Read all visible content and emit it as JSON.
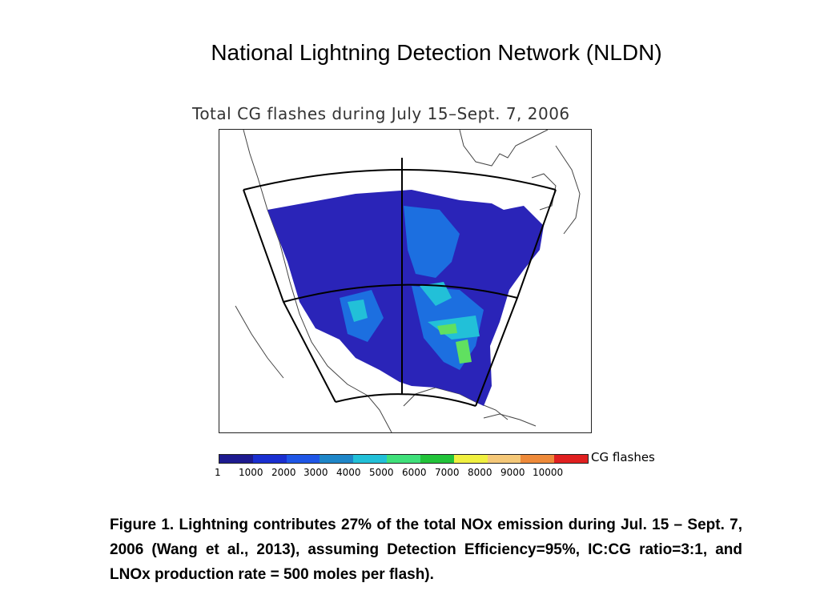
{
  "slide": {
    "title": "National Lightning Detection Network (NLDN)"
  },
  "map": {
    "title": "Total CG flashes during July 15–Sept. 7, 2006",
    "colorbar_label": "CG flashes",
    "colorbar_ticks": [
      "1",
      "1000",
      "2000",
      "3000",
      "4000",
      "5000",
      "6000",
      "7000",
      "8000",
      "9000",
      "10000"
    ],
    "colorbar_colors": [
      "#1d1a8f",
      "#1a2fd0",
      "#1f56e6",
      "#1e86c8",
      "#22c0d8",
      "#3fe07a",
      "#22c33a",
      "#f0f040",
      "#f5c878",
      "#ee8a3a",
      "#e02020"
    ],
    "region_colors": {
      "low": "#2a24b8",
      "medium": "#1c6fe0",
      "high": "#22c0d8",
      "peak": "#60e060",
      "coast": "#444444",
      "grid": "#000000"
    }
  },
  "caption": {
    "text": "Figure 1. Lightning contributes 27% of the total NOx emission during Jul. 15 – Sept. 7, 2006 (Wang et al., 2013), assuming Detection Efficiency=95%, IC:CG ratio=3:1, and LNOx production rate = 500 moles per flash)."
  }
}
